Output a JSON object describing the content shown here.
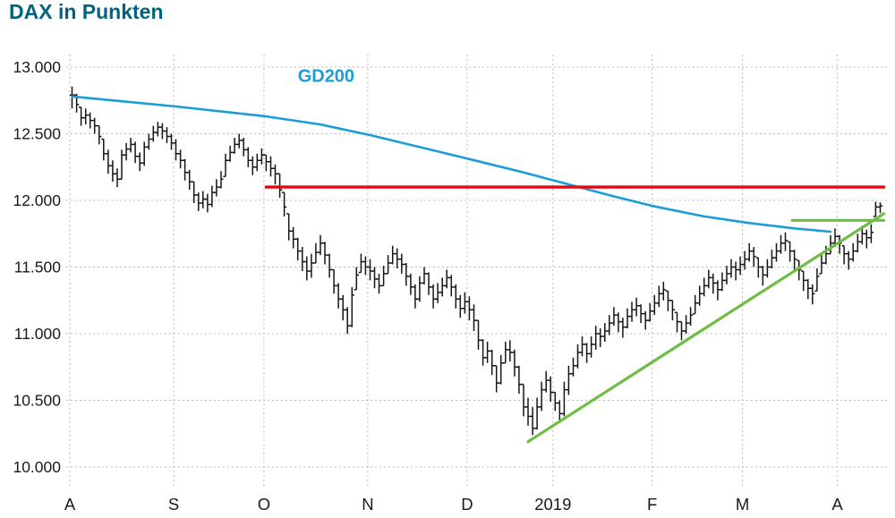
{
  "title": "DAX in Punkten",
  "colors": {
    "title": "#00647E",
    "gd200": "#1B9DD9",
    "resistance": "#E30613",
    "trend": "#6FBE44",
    "bars": "#161616",
    "grid": "#BBBBBB",
    "axis_text": "#1A1A1A"
  },
  "chart_data": {
    "type": "ohlc",
    "title": "DAX in Punkten",
    "y_axis": {
      "min": 10000,
      "max": 13000,
      "ticks": [
        {
          "value": 10000,
          "label": "10.000"
        },
        {
          "value": 10500,
          "label": "10.500"
        },
        {
          "value": 11000,
          "label": "11.000"
        },
        {
          "value": 11500,
          "label": "11.500"
        },
        {
          "value": 12000,
          "label": "12.000"
        },
        {
          "value": 12500,
          "label": "12.500"
        },
        {
          "value": 13000,
          "label": "13.000"
        }
      ]
    },
    "months": [
      {
        "label": "A",
        "bars": [
          [
            12855,
            12690,
            12790
          ],
          [
            12800,
            12660,
            12720
          ],
          [
            12700,
            12560,
            12620
          ],
          [
            12690,
            12570,
            12640
          ],
          [
            12660,
            12540,
            12600
          ],
          [
            12620,
            12500,
            12560
          ],
          [
            12560,
            12420,
            12480
          ],
          [
            12460,
            12300,
            12350
          ],
          [
            12380,
            12200,
            12260
          ],
          [
            12300,
            12140,
            12200
          ],
          [
            12240,
            12100,
            12160
          ],
          [
            12380,
            12160,
            12340
          ],
          [
            12430,
            12300,
            12385
          ],
          [
            12470,
            12360,
            12420
          ],
          [
            12440,
            12280,
            12330
          ],
          [
            12360,
            12220,
            12280
          ],
          [
            12440,
            12260,
            12400
          ],
          [
            12500,
            12380,
            12460
          ],
          [
            12560,
            12440,
            12510
          ],
          [
            12590,
            12480,
            12550
          ],
          [
            12580,
            12460,
            12520
          ],
          [
            12550,
            12430,
            12480
          ],
          [
            12500,
            12380,
            12430
          ]
        ]
      },
      {
        "label": "S",
        "bars": [
          [
            12460,
            12300,
            12350
          ],
          [
            12380,
            12240,
            12300
          ],
          [
            12310,
            12150,
            12210
          ],
          [
            12230,
            12080,
            12140
          ],
          [
            12140,
            11980,
            12040
          ],
          [
            12060,
            11920,
            11980
          ],
          [
            12070,
            11940,
            12010
          ],
          [
            12050,
            11910,
            11970
          ],
          [
            12110,
            11950,
            12060
          ],
          [
            12160,
            12030,
            12100
          ],
          [
            12220,
            12090,
            12160
          ],
          [
            12350,
            12180,
            12300
          ],
          [
            12410,
            12290,
            12360
          ],
          [
            12470,
            12350,
            12420
          ],
          [
            12500,
            12390,
            12450
          ],
          [
            12470,
            12330,
            12380
          ],
          [
            12400,
            12250,
            12300
          ],
          [
            12330,
            12190,
            12250
          ],
          [
            12350,
            12220,
            12300
          ],
          [
            12390,
            12270,
            12340
          ]
        ]
      },
      {
        "label": "O",
        "bars": [
          [
            12340,
            12220,
            12290
          ],
          [
            12330,
            12180,
            12240
          ],
          [
            12270,
            12120,
            12200
          ],
          [
            12200,
            12020,
            12080
          ],
          [
            12060,
            11880,
            11950
          ],
          [
            11900,
            11700,
            11770
          ],
          [
            11800,
            11640,
            11710
          ],
          [
            11720,
            11550,
            11620
          ],
          [
            11650,
            11470,
            11540
          ],
          [
            11580,
            11400,
            11470
          ],
          [
            11600,
            11420,
            11530
          ],
          [
            11680,
            11530,
            11610
          ],
          [
            11740,
            11590,
            11680
          ],
          [
            11690,
            11520,
            11590
          ],
          [
            11600,
            11420,
            11480
          ],
          [
            11480,
            11300,
            11360
          ],
          [
            11380,
            11190,
            11260
          ],
          [
            11290,
            11100,
            11180
          ],
          [
            11200,
            11000,
            11060
          ],
          [
            11350,
            11050,
            11290
          ],
          [
            11500,
            11330,
            11440
          ],
          [
            11600,
            11460,
            11540
          ],
          [
            11580,
            11440,
            11500
          ]
        ]
      },
      {
        "label": "N",
        "bars": [
          [
            11560,
            11400,
            11470
          ],
          [
            11500,
            11340,
            11410
          ],
          [
            11450,
            11300,
            11360
          ],
          [
            11510,
            11360,
            11450
          ],
          [
            11590,
            11450,
            11530
          ],
          [
            11660,
            11520,
            11600
          ],
          [
            11640,
            11490,
            11560
          ],
          [
            11600,
            11450,
            11520
          ],
          [
            11530,
            11360,
            11430
          ],
          [
            11450,
            11290,
            11350
          ],
          [
            11370,
            11190,
            11260
          ],
          [
            11430,
            11240,
            11380
          ],
          [
            11500,
            11370,
            11450
          ],
          [
            11460,
            11290,
            11350
          ],
          [
            11370,
            11190,
            11260
          ],
          [
            11380,
            11230,
            11310
          ],
          [
            11420,
            11280,
            11360
          ],
          [
            11480,
            11340,
            11420
          ],
          [
            11440,
            11280,
            11350
          ],
          [
            11370,
            11190,
            11260
          ],
          [
            11290,
            11120,
            11190
          ],
          [
            11310,
            11150,
            11240
          ]
        ]
      },
      {
        "label": "D",
        "bars": [
          [
            11280,
            11100,
            11180
          ],
          [
            11220,
            11020,
            11100
          ],
          [
            11100,
            10880,
            10950
          ],
          [
            10960,
            10760,
            10820
          ],
          [
            10940,
            10780,
            10870
          ],
          [
            10880,
            10690,
            10760
          ],
          [
            10760,
            10560,
            10630
          ],
          [
            10840,
            10620,
            10780
          ],
          [
            10940,
            10780,
            10880
          ],
          [
            10950,
            10790,
            10860
          ],
          [
            10880,
            10680,
            10750
          ],
          [
            10760,
            10550,
            10620
          ],
          [
            10620,
            10380,
            10450
          ],
          [
            10520,
            10310,
            10380
          ],
          [
            10450,
            10240,
            10290
          ],
          [
            10520,
            10280,
            10450
          ],
          [
            10640,
            10420,
            10580
          ],
          [
            10720,
            10560,
            10650
          ],
          [
            10680,
            10490,
            10560
          ]
        ]
      },
      {
        "label": "2019",
        "bars": [
          [
            10560,
            10420,
            10480
          ],
          [
            10500,
            10330,
            10400
          ],
          [
            10640,
            10380,
            10580
          ],
          [
            10760,
            10540,
            10700
          ],
          [
            10820,
            10680,
            10760
          ],
          [
            10920,
            10740,
            10860
          ],
          [
            10980,
            10830,
            10920
          ],
          [
            10930,
            10780,
            10850
          ],
          [
            10980,
            10820,
            10920
          ],
          [
            11060,
            10880,
            11000
          ],
          [
            11040,
            10900,
            10980
          ],
          [
            11080,
            10940,
            11020
          ],
          [
            11140,
            10990,
            11080
          ],
          [
            11200,
            11060,
            11140
          ],
          [
            11160,
            11010,
            11090
          ],
          [
            11120,
            10970,
            11050
          ],
          [
            11190,
            11040,
            11130
          ],
          [
            11240,
            11090,
            11180
          ],
          [
            11270,
            11130,
            11210
          ],
          [
            11220,
            11080,
            11150
          ],
          [
            11170,
            11030,
            11100
          ],
          [
            11230,
            11090,
            11170
          ]
        ]
      },
      {
        "label": "F",
        "bars": [
          [
            11290,
            11140,
            11230
          ],
          [
            11360,
            11200,
            11300
          ],
          [
            11390,
            11250,
            11330
          ],
          [
            11320,
            11170,
            11250
          ],
          [
            11250,
            11100,
            11180
          ],
          [
            11160,
            11010,
            11090
          ],
          [
            11090,
            10950,
            11020
          ],
          [
            11140,
            11000,
            11080
          ],
          [
            11200,
            11060,
            11140
          ],
          [
            11290,
            11150,
            11230
          ],
          [
            11360,
            11210,
            11300
          ],
          [
            11420,
            11280,
            11360
          ],
          [
            11480,
            11340,
            11420
          ],
          [
            11450,
            11300,
            11380
          ],
          [
            11400,
            11250,
            11330
          ],
          [
            11460,
            11320,
            11400
          ],
          [
            11510,
            11370,
            11450
          ],
          [
            11560,
            11420,
            11500
          ],
          [
            11540,
            11400,
            11480
          ],
          [
            11580,
            11440,
            11520
          ]
        ]
      },
      {
        "label": "M",
        "bars": [
          [
            11620,
            11480,
            11560
          ],
          [
            11680,
            11540,
            11620
          ],
          [
            11650,
            11500,
            11580
          ],
          [
            11570,
            11420,
            11500
          ],
          [
            11510,
            11360,
            11440
          ],
          [
            11560,
            11420,
            11500
          ],
          [
            11630,
            11490,
            11570
          ],
          [
            11680,
            11540,
            11620
          ],
          [
            11740,
            11600,
            11680
          ],
          [
            11760,
            11620,
            11700
          ],
          [
            11690,
            11540,
            11620
          ],
          [
            11630,
            11480,
            11560
          ],
          [
            11550,
            11400,
            11480
          ],
          [
            11470,
            11320,
            11400
          ],
          [
            11410,
            11260,
            11340
          ],
          [
            11370,
            11220,
            11300
          ],
          [
            11490,
            11320,
            11430
          ],
          [
            11590,
            11450,
            11530
          ],
          [
            11660,
            11520,
            11600
          ],
          [
            11740,
            11600,
            11680
          ],
          [
            11790,
            11650,
            11730
          ]
        ]
      },
      {
        "label": "A",
        "bars": [
          [
            11740,
            11600,
            11680
          ],
          [
            11660,
            11520,
            11600
          ],
          [
            11620,
            11480,
            11560
          ],
          [
            11680,
            11540,
            11620
          ],
          [
            11750,
            11610,
            11690
          ],
          [
            11810,
            11670,
            11750
          ],
          [
            11780,
            11640,
            11720
          ],
          [
            11820,
            11680,
            11760
          ],
          [
            11990,
            11880,
            11950
          ],
          [
            11985,
            11905,
            11960
          ]
        ]
      }
    ],
    "overlays": {
      "gd200": {
        "label": "GD200",
        "color": "#1B9DD9",
        "label_pos": {
          "index": 50,
          "value": 12890
        },
        "points": [
          [
            0,
            12780
          ],
          [
            23,
            12705
          ],
          [
            43,
            12630
          ],
          [
            55,
            12570
          ],
          [
            66,
            12490
          ],
          [
            88,
            12310
          ],
          [
            100,
            12210
          ],
          [
            110,
            12120
          ],
          [
            120,
            12030
          ],
          [
            129,
            11955
          ],
          [
            140,
            11880
          ],
          [
            150,
            11830
          ],
          [
            160,
            11790
          ],
          [
            168,
            11765
          ]
        ]
      },
      "resistance": {
        "color": "#E30613",
        "value": 12100,
        "from_index": 43,
        "to_index": 179.8
      },
      "trendline": {
        "color": "#6FBE44",
        "points": [
          [
            101,
            10190
          ],
          [
            179.8,
            11900
          ]
        ]
      },
      "breakout_level": {
        "color": "#6FBE44",
        "value": 11850,
        "from_index": 159.5,
        "to_index": 179.8
      }
    }
  }
}
